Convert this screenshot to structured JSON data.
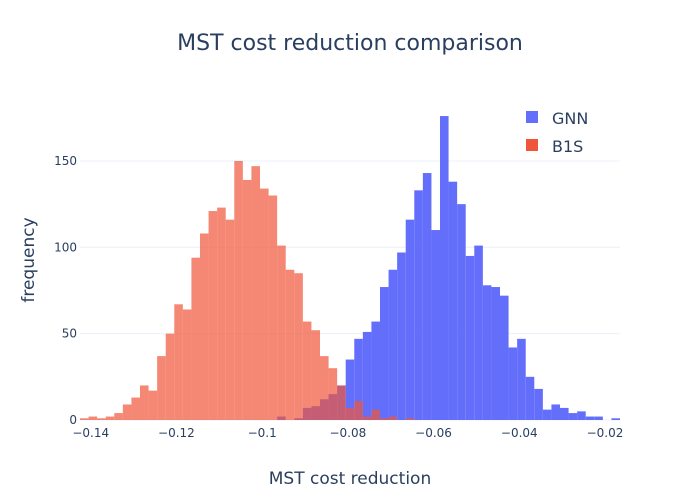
{
  "chart_data": {
    "type": "histogram",
    "title": "MST cost reduction comparison",
    "xlabel": "MST cost reduction",
    "ylabel": "frequency",
    "xlim": [
      -0.1425,
      -0.0165
    ],
    "ylim": [
      0,
      185.3
    ],
    "grid": true,
    "barmode": "overlay",
    "bin_start": -0.1425,
    "bin_size": 0.002,
    "x_ticks": [
      {
        "value": -0.14,
        "label": "−0.14"
      },
      {
        "value": -0.12,
        "label": "−0.12"
      },
      {
        "value": -0.1,
        "label": "−0.1"
      },
      {
        "value": -0.08,
        "label": "−0.08"
      },
      {
        "value": -0.06,
        "label": "−0.06"
      },
      {
        "value": -0.04,
        "label": "−0.04"
      },
      {
        "value": -0.02,
        "label": "−0.02"
      }
    ],
    "y_ticks": [
      {
        "value": 0,
        "label": "0"
      },
      {
        "value": 50,
        "label": "50"
      },
      {
        "value": 100,
        "label": "100"
      },
      {
        "value": 150,
        "label": "150"
      }
    ],
    "legend_position": "top-right",
    "series": [
      {
        "name": "GNN",
        "color": "#636efa",
        "opacity": 1.0,
        "counts": [
          0,
          0,
          0,
          0,
          0,
          0,
          0,
          0,
          0,
          0,
          0,
          0,
          0,
          0,
          0,
          0,
          0,
          0,
          0,
          0,
          0,
          0,
          0,
          2,
          0,
          1,
          7,
          8,
          12,
          15,
          20,
          35,
          47,
          51,
          57,
          77,
          87,
          97,
          116,
          133,
          143,
          110,
          176,
          138,
          125,
          95,
          101,
          78,
          77,
          72,
          42,
          47,
          25,
          18,
          6,
          9,
          7,
          4,
          5,
          2,
          2,
          0,
          1
        ]
      },
      {
        "name": "B1S",
        "color": "#ef553b",
        "opacity": 0.7,
        "counts": [
          1,
          2,
          1,
          2,
          4,
          9,
          13,
          20,
          17,
          37,
          50,
          67,
          64,
          94,
          108,
          121,
          123,
          116,
          150,
          139,
          147,
          134,
          130,
          101,
          87,
          85,
          57,
          52,
          37,
          30,
          20,
          7,
          11,
          2,
          6,
          1,
          2,
          0,
          1
        ]
      }
    ]
  }
}
